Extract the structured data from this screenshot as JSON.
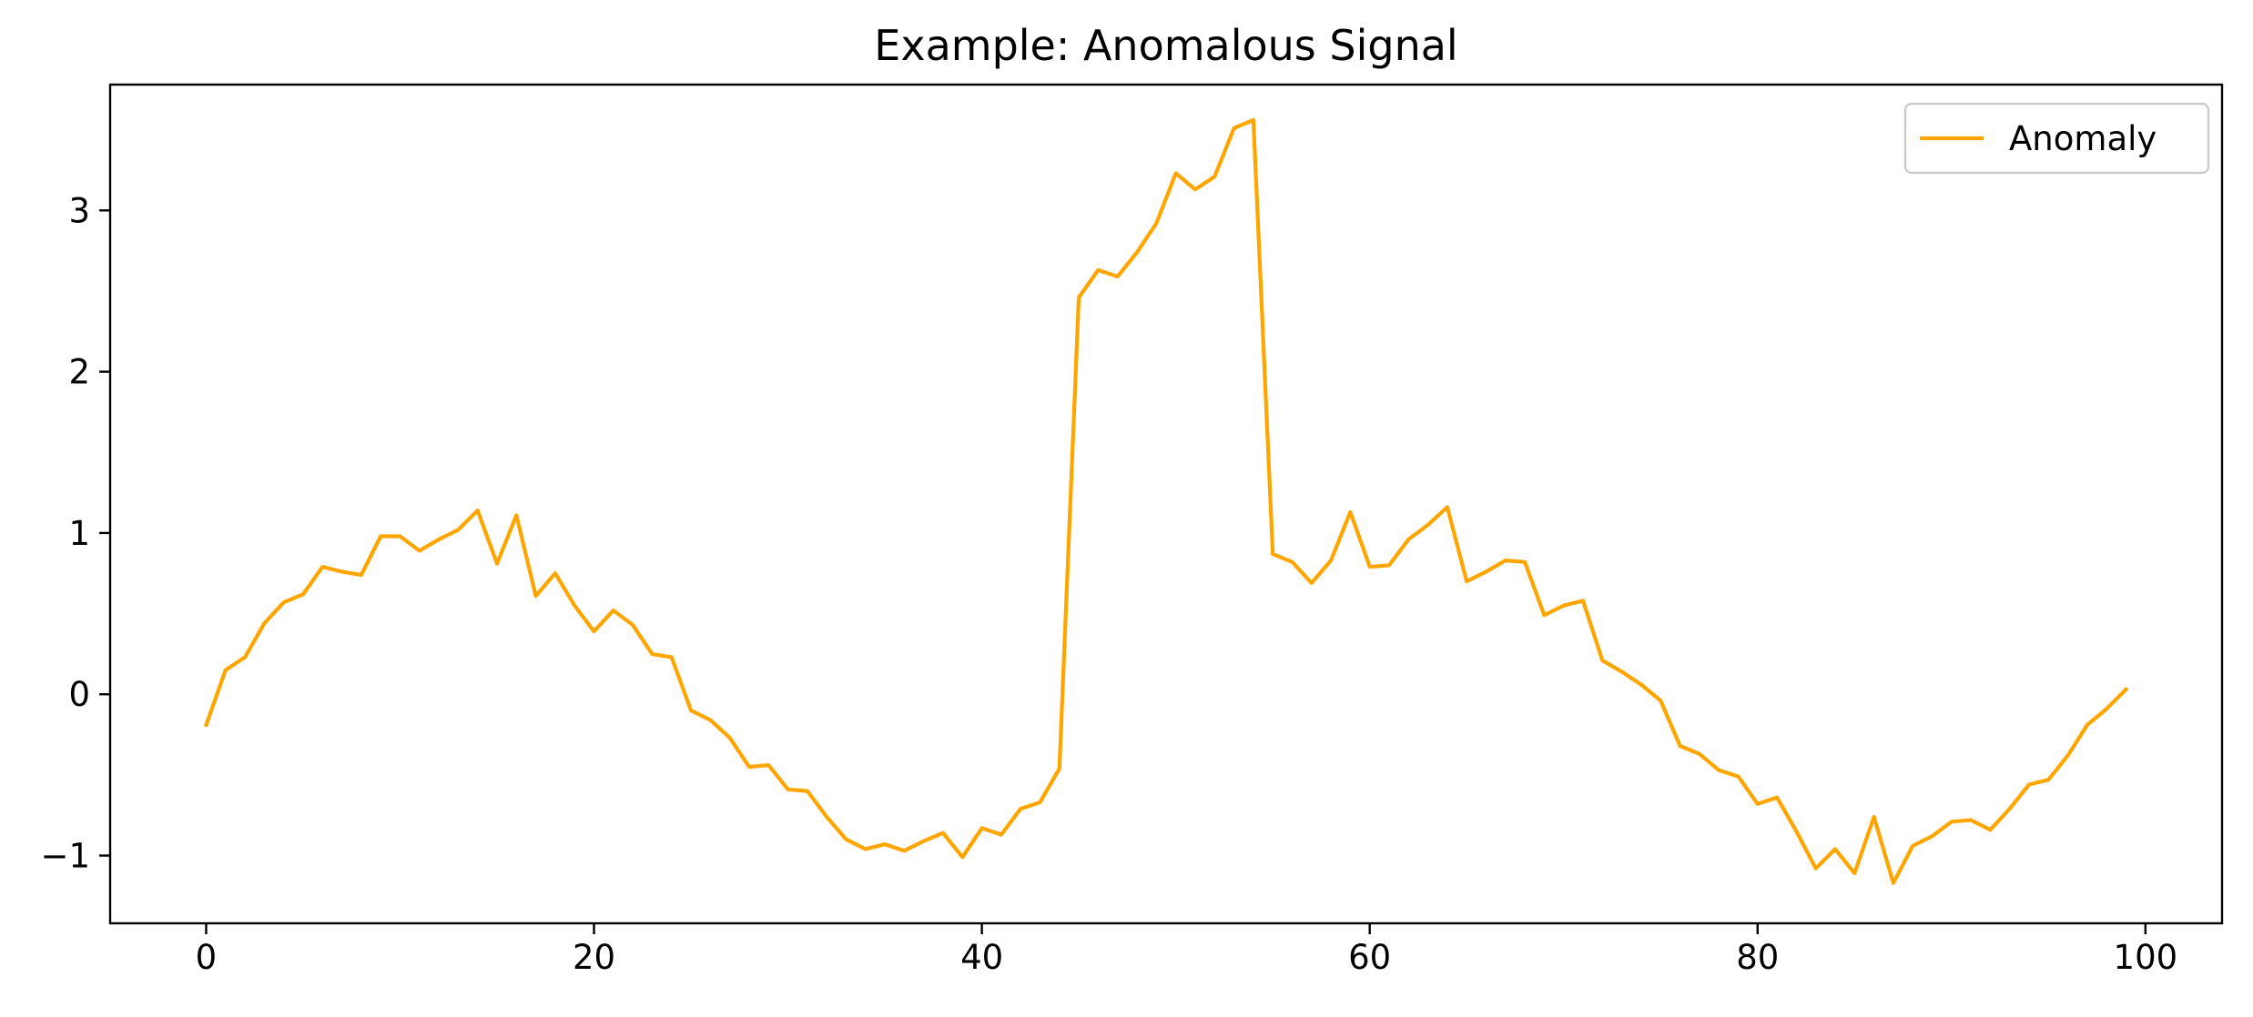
{
  "chart_data": {
    "type": "line",
    "title": "Example: Anomalous Signal",
    "xlabel": "",
    "ylabel": "",
    "xlim": [
      -4.95,
      103.95
    ],
    "ylim": [
      -1.42,
      3.78
    ],
    "xticks": [
      0,
      20,
      40,
      60,
      80,
      100
    ],
    "xtick_labels": [
      "0",
      "20",
      "40",
      "60",
      "80",
      "100"
    ],
    "yticks": [
      -1,
      0,
      1,
      2,
      3
    ],
    "ytick_labels": [
      "−1",
      "0",
      "1",
      "2",
      "3"
    ],
    "grid": false,
    "legend_position": "top-right",
    "series": [
      {
        "name": "Anomaly",
        "color": "#ffa500",
        "x": [
          0,
          1,
          2,
          3,
          4,
          5,
          6,
          7,
          8,
          9,
          10,
          11,
          12,
          13,
          14,
          15,
          16,
          17,
          18,
          19,
          20,
          21,
          22,
          23,
          24,
          25,
          26,
          27,
          28,
          29,
          30,
          31,
          32,
          33,
          34,
          35,
          36,
          37,
          38,
          39,
          40,
          41,
          42,
          43,
          44,
          45,
          46,
          47,
          48,
          49,
          50,
          51,
          52,
          53,
          54,
          55,
          56,
          57,
          58,
          59,
          60,
          61,
          62,
          63,
          64,
          65,
          66,
          67,
          68,
          69,
          70,
          71,
          72,
          73,
          74,
          75,
          76,
          77,
          78,
          79,
          80,
          81,
          82,
          83,
          84,
          85,
          86,
          87,
          88,
          89,
          90,
          91,
          92,
          93,
          94,
          95,
          96,
          97,
          98,
          99
        ],
        "values": [
          -0.19,
          0.15,
          0.23,
          0.44,
          0.57,
          0.62,
          0.79,
          0.76,
          0.74,
          0.98,
          0.98,
          0.89,
          0.96,
          1.02,
          1.14,
          0.81,
          1.11,
          0.61,
          0.75,
          0.55,
          0.39,
          0.52,
          0.43,
          0.25,
          0.23,
          -0.1,
          -0.16,
          -0.27,
          -0.45,
          -0.44,
          -0.59,
          -0.6,
          -0.76,
          -0.9,
          -0.96,
          -0.93,
          -0.97,
          -0.91,
          -0.86,
          -1.01,
          -0.83,
          -0.87,
          -0.71,
          -0.67,
          -0.46,
          2.46,
          2.63,
          2.59,
          2.74,
          2.92,
          3.23,
          3.13,
          3.21,
          3.51,
          3.56,
          0.87,
          0.82,
          0.69,
          0.83,
          1.13,
          0.79,
          0.8,
          0.96,
          1.05,
          1.16,
          0.7,
          0.76,
          0.83,
          0.82,
          0.49,
          0.55,
          0.58,
          0.21,
          0.14,
          0.06,
          -0.04,
          -0.32,
          -0.37,
          -0.47,
          -0.51,
          -0.68,
          -0.64,
          -0.85,
          -1.08,
          -0.96,
          -1.11,
          -0.76,
          -1.17,
          -0.94,
          -0.88,
          -0.79,
          -0.78,
          -0.84,
          -0.71,
          -0.56,
          -0.53,
          -0.38,
          -0.19,
          -0.09,
          0.03
        ]
      }
    ]
  }
}
